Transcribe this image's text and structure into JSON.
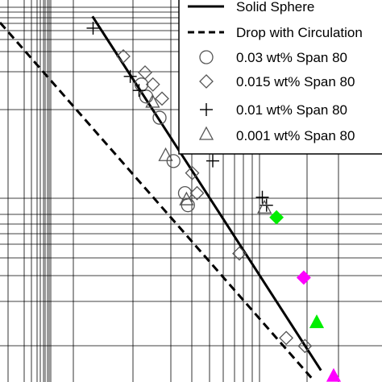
{
  "chart_data": {
    "type": "scatter",
    "title": "",
    "xlabel": "",
    "ylabel": "",
    "x_scale": "log",
    "y_scale": "log",
    "grid": true,
    "legend_position": "top-right",
    "series": [
      {
        "name": "Solid Sphere",
        "kind": "line",
        "dash": "solid",
        "x": [
          0.0306,
          0.1062
        ],
        "y": [
          -0.0096,
          -0.2171
        ]
      },
      {
        "name": "Drop with Circulation",
        "kind": "line",
        "dash": "dashed",
        "x": [
          0.0,
          0.1036
        ],
        "y": [
          -0.0132,
          -0.2226
        ]
      },
      {
        "name": "0.03 wt% Span 80",
        "kind": "marker",
        "marker": "circle",
        "x": [
          0.0468,
          0.0484,
          0.0528,
          0.0574,
          0.0612,
          0.0622
        ],
        "y": [
          -0.0495,
          -0.0566,
          -0.069,
          -0.0944,
          -0.1132,
          -0.1203
        ]
      },
      {
        "name": "0.015 wt% Span 80",
        "kind": "marker",
        "marker": "diamond",
        "x": [
          0.0408,
          0.048,
          0.0506,
          0.0536,
          0.0636,
          0.0652,
          0.0792,
          0.0947,
          0.1009
        ],
        "y": [
          -0.033,
          -0.0425,
          -0.0495,
          -0.0578,
          -0.1014,
          -0.1132,
          -0.1486,
          -0.1981,
          -0.2028
        ]
      },
      {
        "name": "0.01 wt% Span 80",
        "kind": "marker",
        "marker": "plus",
        "x": [
          0.0308,
          0.0431,
          0.046,
          0.0704,
          0.0868,
          0.0882
        ],
        "y": [
          -0.0165,
          -0.0448,
          -0.053,
          -0.0943,
          -0.1156,
          -0.1203
        ]
      },
      {
        "name": "0.001 wt% Span 80",
        "kind": "marker",
        "marker": "triangle",
        "x": [
          0.0505,
          0.0548,
          0.0617,
          0.0875
        ],
        "y": [
          -0.0595,
          -0.0908,
          -0.1167,
          -0.1215
        ]
      },
      {
        "name": "",
        "kind": "marker",
        "marker": "diamond-filled",
        "color": "#00ee00",
        "x": [
          0.0915
        ],
        "y": [
          -0.1274
        ]
      },
      {
        "name": "",
        "kind": "marker",
        "marker": "triangle-filled",
        "color": "#00ee00",
        "x": [
          0.1048
        ],
        "y": [
          -0.1887
        ]
      },
      {
        "name": "",
        "kind": "marker",
        "marker": "diamond-filled",
        "color": "#ff00ff",
        "x": [
          0.1005
        ],
        "y": [
          -0.1627
        ]
      },
      {
        "name": "",
        "kind": "marker",
        "marker": "triangle-filled",
        "color": "#ff00ff",
        "x": [
          0.0
        ],
        "y": [
          0.0
        ]
      }
    ]
  },
  "legend": {
    "entries": [
      {
        "label": "Solid Sphere",
        "symbol": "line-solid"
      },
      {
        "label": "Drop with Circulation",
        "symbol": "line-dashed"
      },
      {
        "label": "0.03 wt%  Span 80",
        "symbol": "circle"
      },
      {
        "label": "0.015 wt%  Span 80",
        "symbol": "diamond"
      },
      {
        "label": "0.01 wt%  Span 80",
        "symbol": "plus"
      },
      {
        "label": "0.001 wt%  Span 80",
        "symbol": "triangle"
      }
    ]
  }
}
